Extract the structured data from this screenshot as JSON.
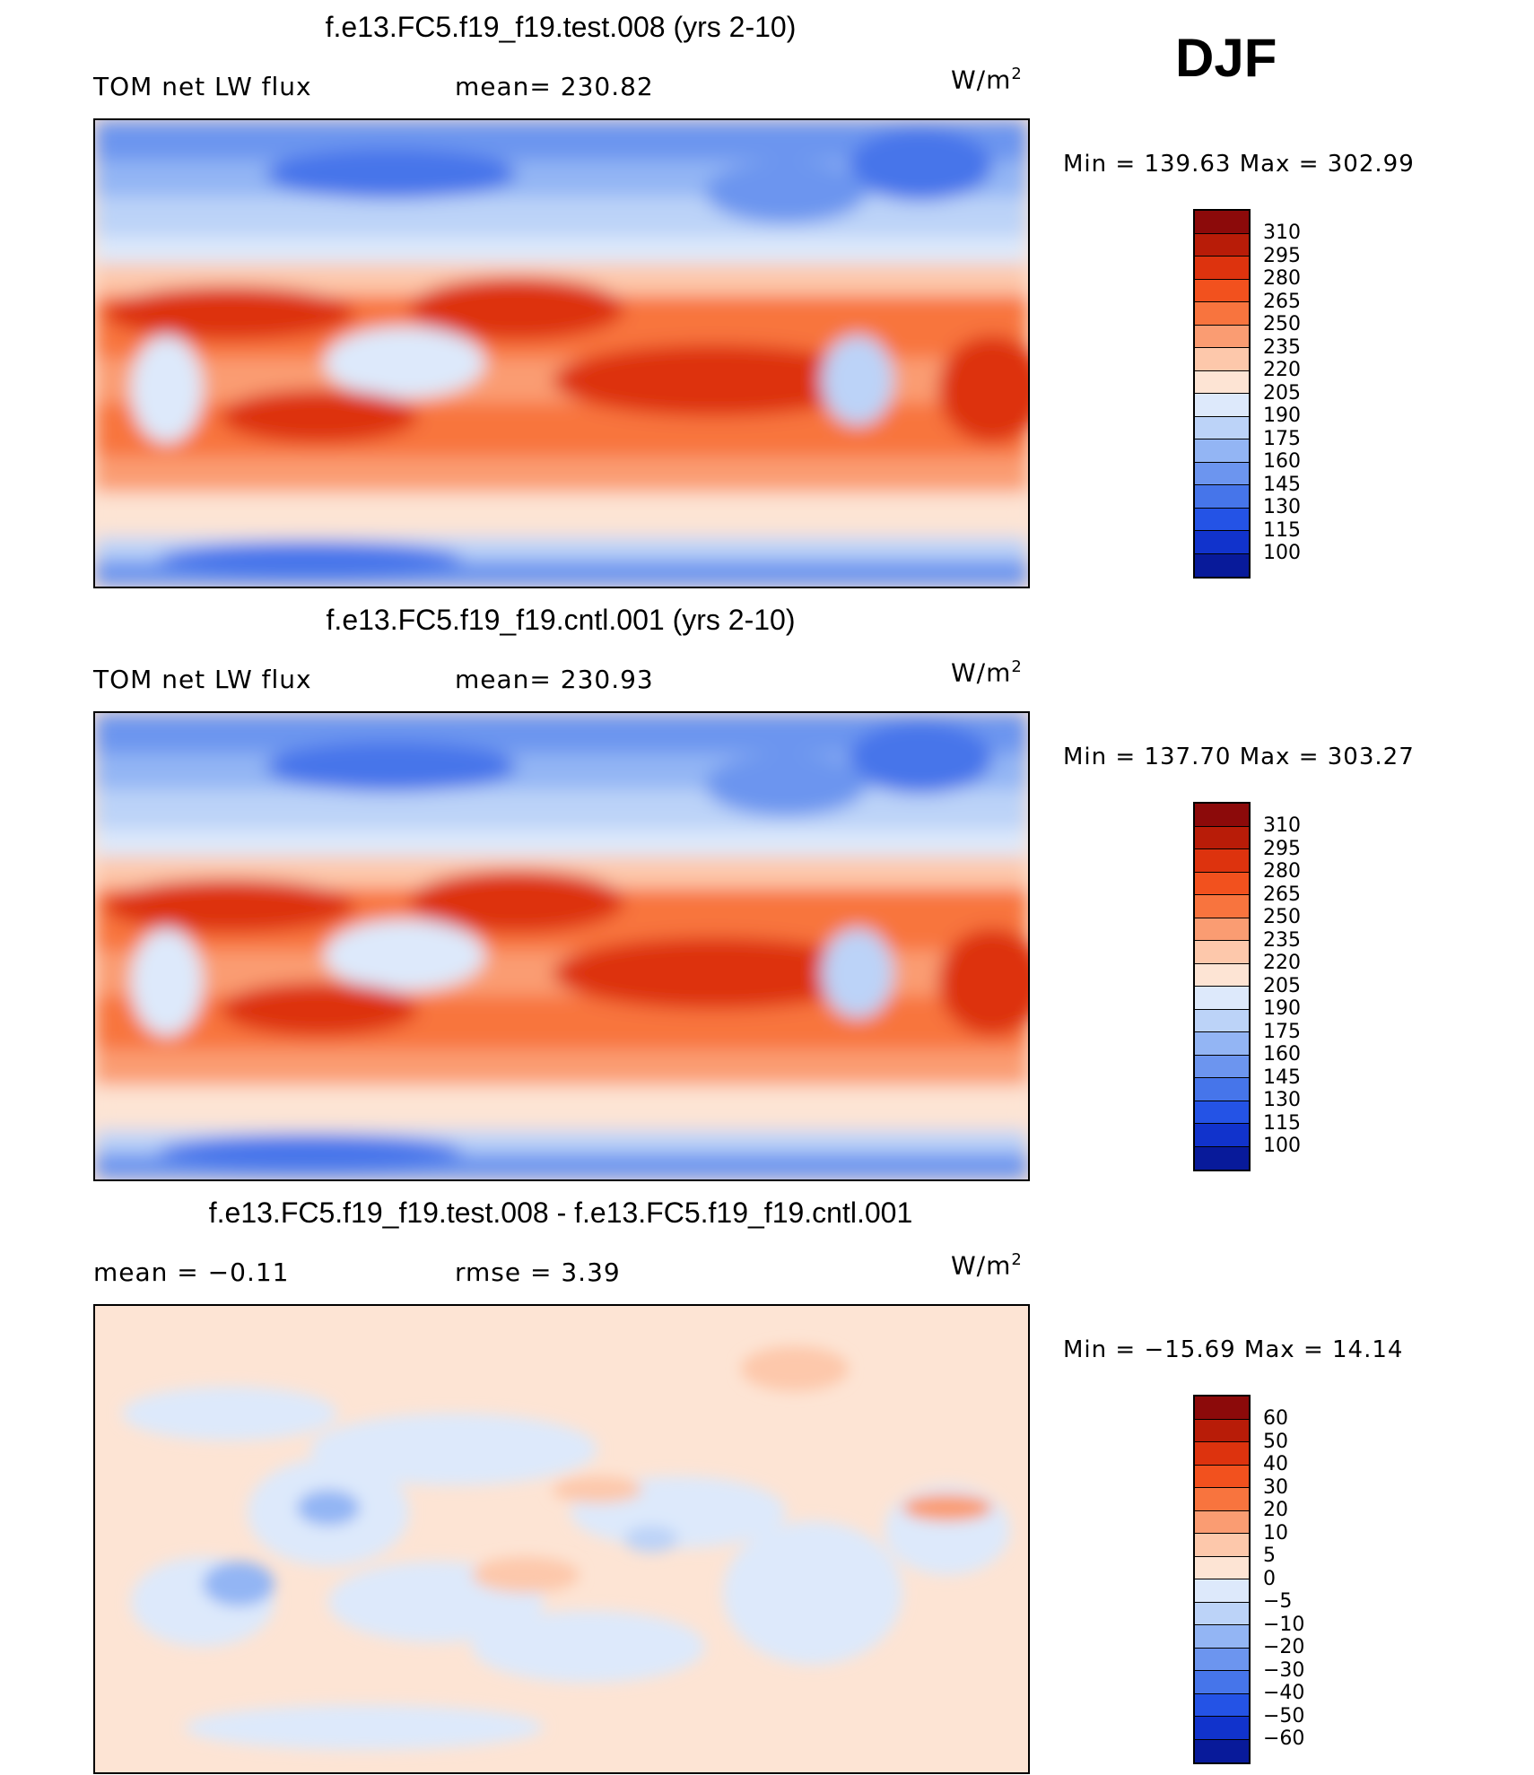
{
  "season": "DJF",
  "chart_data": [
    {
      "type": "heatmap",
      "title": "f.e13.FC5.f19_f19.test.008 (yrs 2-10)",
      "variable": "TOM net LW flux",
      "stat_label": "mean= 230.82",
      "units_label": "W/m",
      "units_power": "2",
      "min_max_label": "Min  =  139.63  Max  =  302.99",
      "min": 139.63,
      "max": 302.99,
      "mean": 230.82,
      "levels": [
        "310",
        "295",
        "280",
        "265",
        "250",
        "235",
        "220",
        "205",
        "190",
        "175",
        "160",
        "145",
        "130",
        "115",
        "100"
      ],
      "colors": [
        "#8c0a0a",
        "#b81c08",
        "#dd330e",
        "#f2511e",
        "#f8743e",
        "#fa9c72",
        "#fdc8ab",
        "#fde4d4",
        "#dde9fb",
        "#bcd3f8",
        "#93b5f4",
        "#6c95ef",
        "#4675ea",
        "#2453e6",
        "#1133cc",
        "#081a9a"
      ]
    },
    {
      "type": "heatmap",
      "title": "f.e13.FC5.f19_f19.cntl.001 (yrs 2-10)",
      "variable": "TOM net LW flux",
      "stat_label": "mean= 230.93",
      "units_label": "W/m",
      "units_power": "2",
      "min_max_label": "Min  =  137.70  Max  =  303.27",
      "min": 137.7,
      "max": 303.27,
      "mean": 230.93,
      "levels": [
        "310",
        "295",
        "280",
        "265",
        "250",
        "235",
        "220",
        "205",
        "190",
        "175",
        "160",
        "145",
        "130",
        "115",
        "100"
      ],
      "colors": [
        "#8c0a0a",
        "#b81c08",
        "#dd330e",
        "#f2511e",
        "#f8743e",
        "#fa9c72",
        "#fdc8ab",
        "#fde4d4",
        "#dde9fb",
        "#bcd3f8",
        "#93b5f4",
        "#6c95ef",
        "#4675ea",
        "#2453e6",
        "#1133cc",
        "#081a9a"
      ]
    },
    {
      "type": "heatmap",
      "title": "f.e13.FC5.f19_f19.test.008 - f.e13.FC5.f19_f19.cntl.001",
      "variable": "mean  =    −0.11",
      "stat_label": "rmse  =     3.39",
      "units_label": "W/m",
      "units_power": "2",
      "min_max_label": "Min  =  −15.69  Max  =    14.14",
      "min": -15.69,
      "max": 14.14,
      "mean": -0.11,
      "rmse": 3.39,
      "levels": [
        "60",
        "50",
        "40",
        "30",
        "20",
        "10",
        "5",
        "0",
        "−5",
        "−10",
        "−20",
        "−30",
        "−40",
        "−50",
        "−60"
      ],
      "colors": [
        "#8c0a0a",
        "#b81c08",
        "#dd330e",
        "#f2511e",
        "#f8743e",
        "#fa9c72",
        "#fdc8ab",
        "#fde4d4",
        "#dde9fb",
        "#bcd3f8",
        "#93b5f4",
        "#6c95ef",
        "#4675ea",
        "#2453e6",
        "#1133cc",
        "#081a9a"
      ]
    }
  ]
}
